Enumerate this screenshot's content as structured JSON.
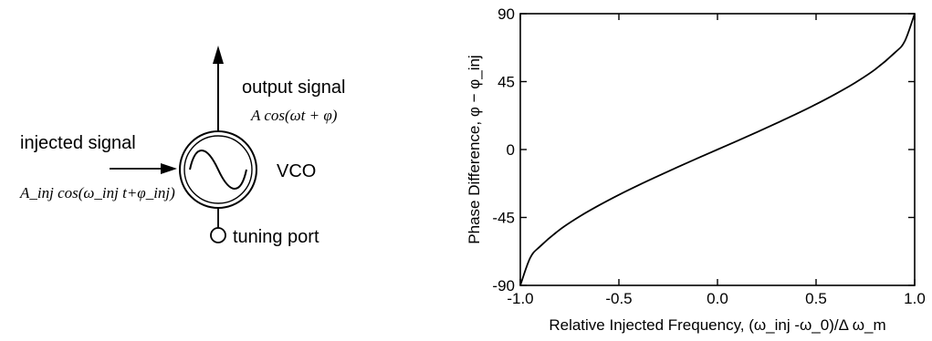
{
  "diagram": {
    "output_label": "output signal",
    "output_expr": "A cos(ωt + φ)",
    "input_label": "injected signal",
    "input_expr": "A_inj cos(ω_inj t+φ_inj)",
    "block_label": "VCO",
    "port_label": "tuning port",
    "oscillator_icon": "sine-wave-icon"
  },
  "chart_data": {
    "type": "line",
    "xlabel": "Relative Injected Frequency, (ω_inj -ω_0)/Δ ω_m",
    "ylabel": "Phase Difference, φ − φ_inj",
    "xlim": [
      -1.0,
      1.0
    ],
    "ylim": [
      -90,
      90
    ],
    "x_ticks": [
      -1.0,
      -0.5,
      0.0,
      0.5,
      1.0
    ],
    "x_tick_labels": [
      "-1.0",
      "-0.5",
      "0.0",
      "0.5",
      "1.0"
    ],
    "y_ticks": [
      -90,
      -45,
      0,
      45,
      90
    ],
    "y_tick_labels": [
      "-90",
      "-45",
      "0",
      "45",
      "90"
    ],
    "grid": false,
    "series": [
      {
        "x": [
          -1.0,
          -0.95,
          -0.9,
          -0.8,
          -0.7,
          -0.6,
          -0.5,
          -0.4,
          -0.3,
          -0.2,
          -0.1,
          0.0,
          0.1,
          0.2,
          0.3,
          0.4,
          0.5,
          0.6,
          0.7,
          0.8,
          0.9,
          0.95,
          1.0
        ],
        "y": [
          -90,
          -71.8,
          -64.2,
          -53.1,
          -44.4,
          -36.9,
          -30.0,
          -23.6,
          -17.5,
          -11.5,
          -5.7,
          0,
          5.7,
          11.5,
          17.5,
          23.6,
          30.0,
          36.9,
          44.4,
          53.1,
          64.2,
          71.8,
          90
        ]
      }
    ]
  }
}
